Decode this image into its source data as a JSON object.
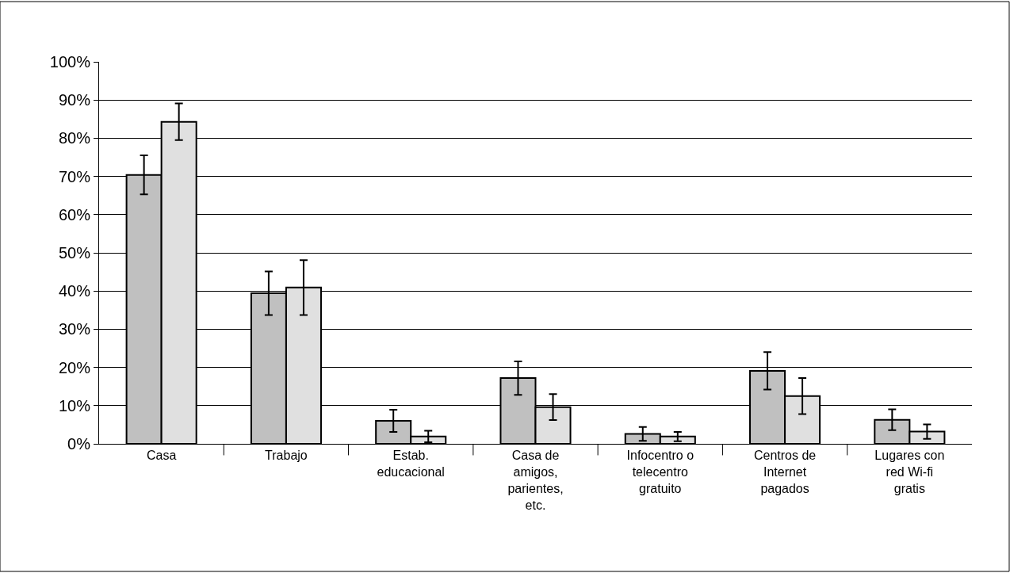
{
  "chart_data": {
    "type": "bar",
    "categories": [
      "Casa",
      "Trabajo",
      "Estab. educacional",
      "Casa de amigos, parientes, etc.",
      "Infocentro o telecentro gratuito",
      "Centros de Internet pagados",
      "Lugares con red Wi-fi gratis"
    ],
    "series": [
      {
        "color": "#c0c0c0",
        "values": [
          70.4,
          39.4,
          6.0,
          17.2,
          2.6,
          19.1,
          6.3
        ],
        "errors": [
          5.1,
          5.7,
          2.9,
          4.4,
          1.8,
          4.9,
          2.7
        ]
      },
      {
        "color": "#e0e0e0",
        "values": [
          84.3,
          40.9,
          1.9,
          9.6,
          1.9,
          12.5,
          3.2
        ],
        "errors": [
          4.8,
          7.2,
          1.5,
          3.4,
          1.2,
          4.7,
          1.9
        ]
      }
    ],
    "ylim": [
      0,
      100
    ],
    "yticks": [
      {
        "value": 0,
        "label": "0%"
      },
      {
        "value": 10,
        "label": "10%"
      },
      {
        "value": 20,
        "label": "20%"
      },
      {
        "value": 30,
        "label": "30%"
      },
      {
        "value": 40,
        "label": "40%"
      },
      {
        "value": 50,
        "label": "50%"
      },
      {
        "value": 60,
        "label": "60%"
      },
      {
        "value": 70,
        "label": "70%"
      },
      {
        "value": 80,
        "label": "80%"
      },
      {
        "value": 90,
        "label": "90%"
      },
      {
        "value": 100,
        "label": "100%"
      }
    ],
    "grid": "y"
  }
}
